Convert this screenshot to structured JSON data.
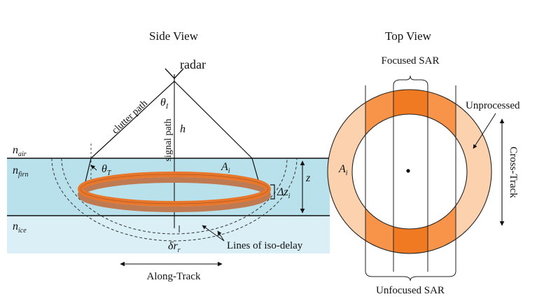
{
  "side_view": {
    "title": "Side View",
    "radar_label": "radar",
    "clutter_path_label": "clutter path",
    "signal_path_label": "signal path",
    "theta_i": {
      "base": "θ",
      "sub": "I"
    },
    "height_label": "h",
    "n_air": {
      "base": "n",
      "sub": "air"
    },
    "n_firn": {
      "base": "n",
      "sub": "firn"
    },
    "n_ice": {
      "base": "n",
      "sub": "ice"
    },
    "theta_t": {
      "base": "θ",
      "sub": "T"
    },
    "area_label": {
      "base": "A",
      "sub": "i"
    },
    "delta_z": {
      "base": "Δz",
      "sub": "i"
    },
    "depth_label": "z",
    "delta_r": {
      "base": "δr",
      "sub": "r"
    },
    "iso_delay_label": "Lines of iso-delay",
    "along_track_label": "Along-Track",
    "colors": {
      "air": "#ffffff",
      "firn": "#b9e1eb",
      "ice": "#daf0f6",
      "ring_dark": "#e8762b",
      "ring_light": "#c07a52"
    }
  },
  "top_view": {
    "title": "Top View",
    "focused_label": "Focused SAR",
    "unfocused_label": "Unfocused SAR",
    "unprocessed_label": "Unprocessed",
    "cross_track_label": "Cross-Track",
    "area_label": {
      "base": "A",
      "sub": "i"
    },
    "colors": {
      "annulus_light": "#fcd1ad",
      "annulus_mid": "#f7944a",
      "annulus_dark": "#f07a21"
    }
  }
}
